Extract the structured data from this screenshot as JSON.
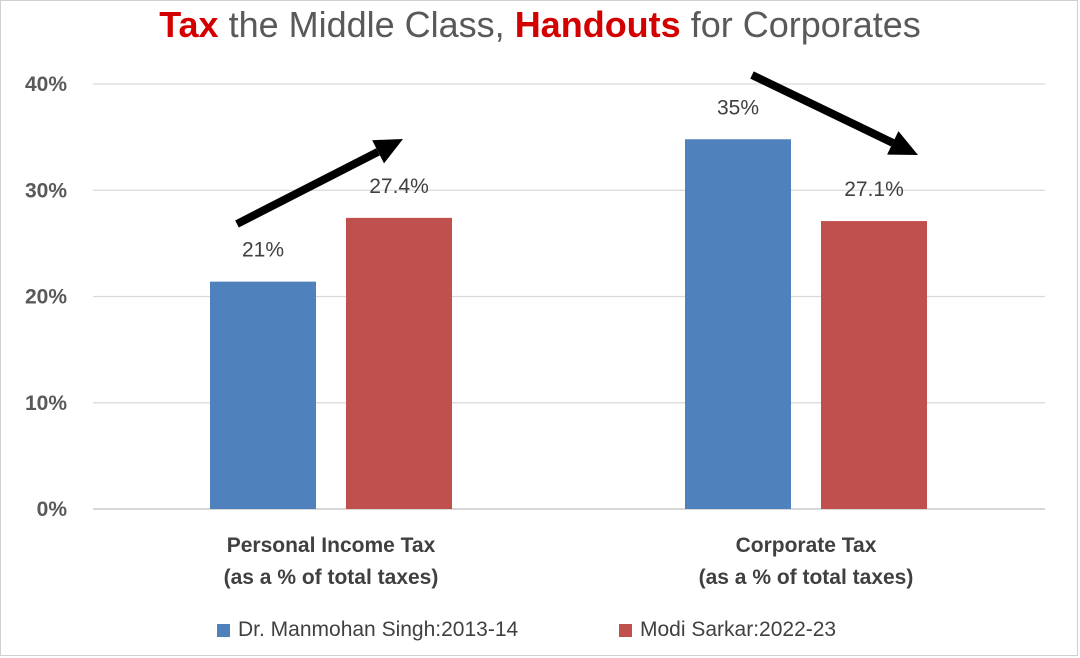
{
  "title": {
    "part1": "Tax",
    "part2": " the Middle Class, ",
    "part3": "Handouts",
    "part4": " for Corporates"
  },
  "colors": {
    "series1": "#4f81bd",
    "series2": "#c0504d",
    "title_highlight": "#d40000",
    "arrow": "#000000",
    "grid": "#d9d9d9"
  },
  "chart_data": {
    "type": "bar",
    "title": "Tax the Middle Class, Handouts for Corporates",
    "categories": [
      [
        "Personal Income Tax",
        "(as a % of total taxes)"
      ],
      [
        "Corporate Tax",
        "(as a % of total taxes)"
      ]
    ],
    "series": [
      {
        "name": "Dr. Manmohan Singh:2013-14",
        "values": [
          21.4,
          34.8
        ],
        "labels": [
          "21%",
          "35%"
        ]
      },
      {
        "name": "Modi Sarkar:2022-23",
        "values": [
          27.4,
          27.1
        ],
        "labels": [
          "27.4%",
          "27.1%"
        ]
      }
    ],
    "ylim": [
      0,
      40
    ],
    "yticks": [
      0,
      10,
      20,
      30,
      40
    ],
    "ytick_labels": [
      "0%",
      "10%",
      "20%",
      "30%",
      "40%"
    ],
    "grid": true,
    "legend_position": "bottom",
    "annotations": [
      {
        "type": "arrow",
        "direction": "up",
        "category": "Personal Income Tax"
      },
      {
        "type": "arrow",
        "direction": "down",
        "category": "Corporate Tax"
      }
    ]
  }
}
